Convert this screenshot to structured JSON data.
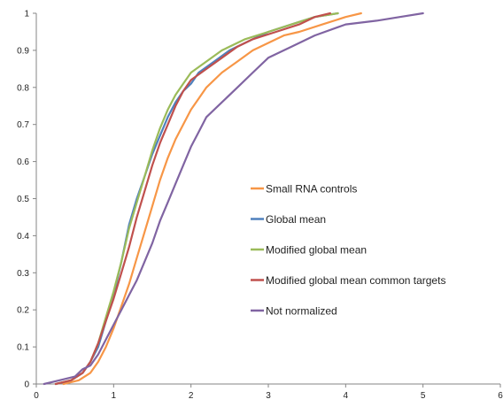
{
  "chart_data": {
    "type": "line",
    "title": "",
    "xlabel": "",
    "ylabel": "",
    "xlim": [
      0,
      6
    ],
    "ylim": [
      0,
      1
    ],
    "x_ticks": [
      "0",
      "1",
      "2",
      "3",
      "4",
      "5",
      "6"
    ],
    "y_ticks": [
      "0",
      "0.1",
      "0.2",
      "0.3",
      "0.4",
      "0.5",
      "0.6",
      "0.7",
      "0.8",
      "0.9",
      "1"
    ],
    "grid": false,
    "legend_position": "center-right",
    "series": [
      {
        "name": "Small RNA controls",
        "color": "#F79646",
        "points": [
          [
            0.35,
            0.0
          ],
          [
            0.55,
            0.01
          ],
          [
            0.7,
            0.03
          ],
          [
            0.8,
            0.06
          ],
          [
            0.9,
            0.1
          ],
          [
            1.0,
            0.15
          ],
          [
            1.1,
            0.21
          ],
          [
            1.2,
            0.27
          ],
          [
            1.3,
            0.34
          ],
          [
            1.4,
            0.41
          ],
          [
            1.5,
            0.48
          ],
          [
            1.6,
            0.55
          ],
          [
            1.7,
            0.61
          ],
          [
            1.8,
            0.66
          ],
          [
            1.9,
            0.7
          ],
          [
            2.0,
            0.74
          ],
          [
            2.1,
            0.77
          ],
          [
            2.2,
            0.8
          ],
          [
            2.4,
            0.84
          ],
          [
            2.6,
            0.87
          ],
          [
            2.8,
            0.9
          ],
          [
            3.0,
            0.92
          ],
          [
            3.2,
            0.94
          ],
          [
            3.4,
            0.95
          ],
          [
            3.7,
            0.97
          ],
          [
            4.0,
            0.99
          ],
          [
            4.2,
            1.0
          ]
        ]
      },
      {
        "name": "Global mean",
        "color": "#4F81BD",
        "points": [
          [
            0.25,
            0.0
          ],
          [
            0.45,
            0.01
          ],
          [
            0.6,
            0.03
          ],
          [
            0.7,
            0.06
          ],
          [
            0.8,
            0.1
          ],
          [
            0.9,
            0.17
          ],
          [
            1.0,
            0.24
          ],
          [
            1.1,
            0.33
          ],
          [
            1.2,
            0.43
          ],
          [
            1.3,
            0.5
          ],
          [
            1.4,
            0.56
          ],
          [
            1.5,
            0.62
          ],
          [
            1.6,
            0.67
          ],
          [
            1.7,
            0.72
          ],
          [
            1.8,
            0.76
          ],
          [
            1.9,
            0.79
          ],
          [
            2.0,
            0.81
          ],
          [
            2.1,
            0.84
          ],
          [
            2.3,
            0.87
          ],
          [
            2.5,
            0.9
          ],
          [
            2.8,
            0.93
          ],
          [
            3.0,
            0.95
          ],
          [
            3.3,
            0.97
          ],
          [
            3.6,
            0.99
          ],
          [
            3.9,
            1.0
          ]
        ]
      },
      {
        "name": "Modified global mean",
        "color": "#9BBB59",
        "points": [
          [
            0.25,
            0.0
          ],
          [
            0.45,
            0.01
          ],
          [
            0.6,
            0.03
          ],
          [
            0.7,
            0.06
          ],
          [
            0.8,
            0.11
          ],
          [
            0.9,
            0.18
          ],
          [
            1.0,
            0.25
          ],
          [
            1.1,
            0.33
          ],
          [
            1.2,
            0.42
          ],
          [
            1.3,
            0.49
          ],
          [
            1.4,
            0.56
          ],
          [
            1.5,
            0.63
          ],
          [
            1.6,
            0.69
          ],
          [
            1.7,
            0.74
          ],
          [
            1.8,
            0.78
          ],
          [
            1.9,
            0.81
          ],
          [
            2.0,
            0.84
          ],
          [
            2.2,
            0.87
          ],
          [
            2.4,
            0.9
          ],
          [
            2.7,
            0.93
          ],
          [
            3.0,
            0.95
          ],
          [
            3.3,
            0.97
          ],
          [
            3.6,
            0.99
          ],
          [
            3.9,
            1.0
          ]
        ]
      },
      {
        "name": "Modified global mean common targets",
        "color": "#C0504D",
        "points": [
          [
            0.25,
            0.0
          ],
          [
            0.45,
            0.01
          ],
          [
            0.6,
            0.03
          ],
          [
            0.7,
            0.06
          ],
          [
            0.8,
            0.11
          ],
          [
            0.9,
            0.17
          ],
          [
            1.0,
            0.23
          ],
          [
            1.1,
            0.3
          ],
          [
            1.2,
            0.37
          ],
          [
            1.3,
            0.45
          ],
          [
            1.4,
            0.52
          ],
          [
            1.5,
            0.59
          ],
          [
            1.6,
            0.65
          ],
          [
            1.7,
            0.7
          ],
          [
            1.8,
            0.75
          ],
          [
            1.9,
            0.79
          ],
          [
            2.0,
            0.82
          ],
          [
            2.2,
            0.85
          ],
          [
            2.4,
            0.88
          ],
          [
            2.6,
            0.91
          ],
          [
            2.8,
            0.93
          ],
          [
            3.1,
            0.95
          ],
          [
            3.4,
            0.97
          ],
          [
            3.6,
            0.99
          ],
          [
            3.8,
            1.0
          ]
        ]
      },
      {
        "name": "Not normalized",
        "color": "#8064A2",
        "points": [
          [
            0.1,
            0.0
          ],
          [
            0.3,
            0.01
          ],
          [
            0.5,
            0.02
          ],
          [
            0.6,
            0.04
          ],
          [
            0.7,
            0.05
          ],
          [
            0.8,
            0.08
          ],
          [
            0.9,
            0.12
          ],
          [
            1.0,
            0.16
          ],
          [
            1.1,
            0.2
          ],
          [
            1.2,
            0.24
          ],
          [
            1.3,
            0.28
          ],
          [
            1.4,
            0.33
          ],
          [
            1.5,
            0.38
          ],
          [
            1.6,
            0.44
          ],
          [
            1.7,
            0.49
          ],
          [
            1.8,
            0.54
          ],
          [
            1.9,
            0.59
          ],
          [
            2.0,
            0.64
          ],
          [
            2.1,
            0.68
          ],
          [
            2.2,
            0.72
          ],
          [
            2.4,
            0.76
          ],
          [
            2.6,
            0.8
          ],
          [
            2.8,
            0.84
          ],
          [
            3.0,
            0.88
          ],
          [
            3.3,
            0.91
          ],
          [
            3.6,
            0.94
          ],
          [
            4.0,
            0.97
          ],
          [
            4.4,
            0.98
          ],
          [
            4.7,
            0.99
          ],
          [
            5.0,
            1.0
          ]
        ]
      }
    ]
  }
}
